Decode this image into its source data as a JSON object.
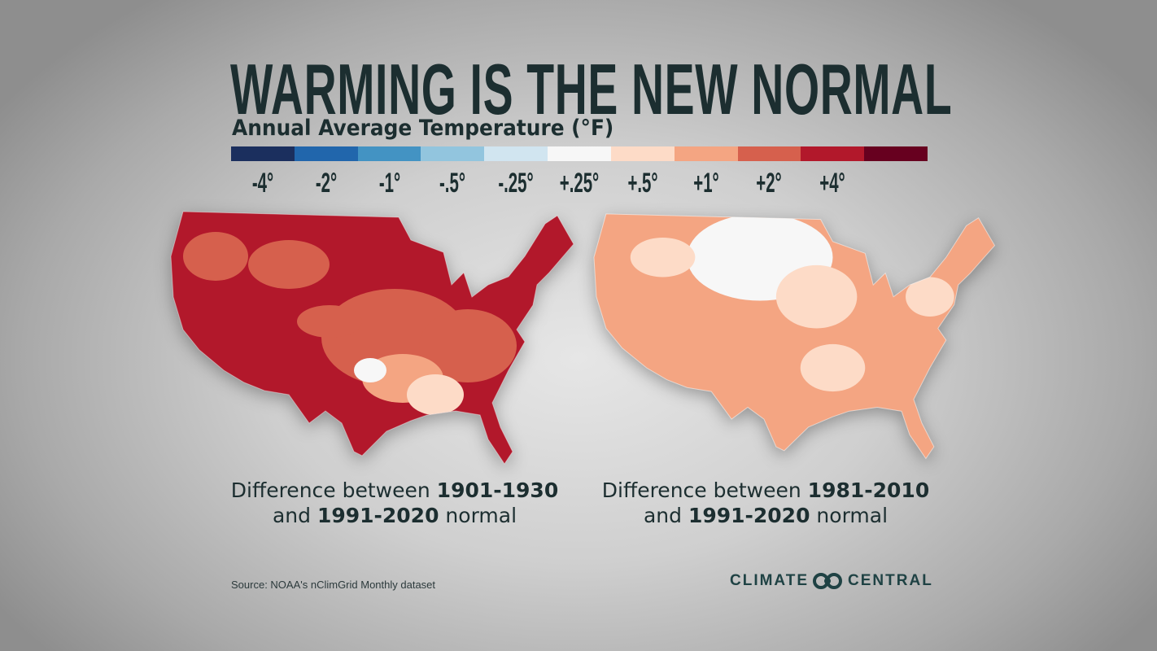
{
  "title": "WARMING IS THE NEW NORMAL",
  "subtitle": "Annual Average Temperature (°F)",
  "legend": {
    "colors": [
      "#1b2f5e",
      "#2166ac",
      "#4393c3",
      "#92c5de",
      "#d1e5f0",
      "#f7f7f7",
      "#fddbc7",
      "#f4a582",
      "#d6604d",
      "#b2182b",
      "#67001f"
    ],
    "labels": [
      "-4°",
      "-2°",
      "-1°",
      "-.5°",
      "-.25°",
      "+.25°",
      "+.5°",
      "+1°",
      "+2°",
      "+4°"
    ]
  },
  "maps": [
    {
      "dominant_color": "#b2182b",
      "caption": {
        "pre": "Difference between ",
        "bold1": "1901-1930",
        "mid": "and ",
        "bold2": "1991-2020",
        "post": " normal"
      }
    },
    {
      "dominant_color": "#f4a582",
      "caption": {
        "pre": "Difference between ",
        "bold1": "1981-2010",
        "mid": "and ",
        "bold2": "1991-2020",
        "post": " normal"
      }
    }
  ],
  "source": "Source: NOAA's nClimGrid Monthly dataset",
  "logo": {
    "left": "CLIMATE",
    "right": "CENTRAL"
  }
}
